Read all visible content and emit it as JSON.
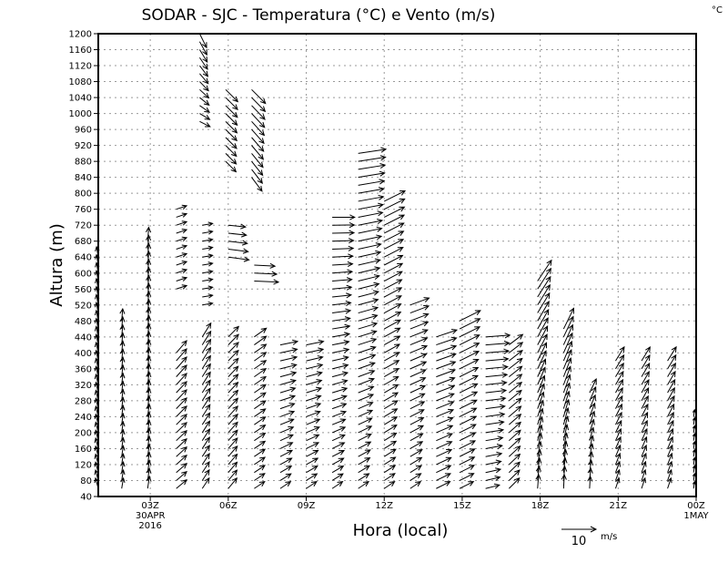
{
  "chart_data": {
    "type": "vector",
    "title": "SODAR - SJC - Temperatura (°C) e Vento (m/s)",
    "corner_label": "°C",
    "xlabel": "Hora (local)",
    "ylabel": "Altura (m)",
    "xlim_hours": [
      1,
      24
    ],
    "ylim": [
      40,
      1200
    ],
    "y_ticks": [
      40,
      80,
      120,
      160,
      200,
      240,
      280,
      320,
      360,
      400,
      440,
      480,
      520,
      560,
      600,
      640,
      680,
      720,
      760,
      800,
      840,
      880,
      920,
      960,
      1000,
      1040,
      1080,
      1120,
      1160,
      1200
    ],
    "x_ticks": [
      {
        "hour": 3,
        "label": "03Z",
        "sub1": "30APR",
        "sub2": "2016"
      },
      {
        "hour": 6,
        "label": "06Z"
      },
      {
        "hour": 9,
        "label": "09Z"
      },
      {
        "hour": 12,
        "label": "12Z"
      },
      {
        "hour": 15,
        "label": "15Z"
      },
      {
        "hour": 18,
        "label": "18Z"
      },
      {
        "hour": 21,
        "label": "21Z"
      },
      {
        "hour": 24,
        "label": "00Z",
        "sub1": "1MAY"
      }
    ],
    "grid": true,
    "reference_vector": {
      "speed": 10,
      "label": "10",
      "unit": "m/s"
    },
    "height_step": 20,
    "segments": [
      {
        "t": 1.0,
        "z": [
          60,
          640
        ],
        "u": [
          -0.8,
          -0.5
        ],
        "v": [
          3,
          3
        ]
      },
      {
        "t": 1.9,
        "z": [
          60,
          480
        ],
        "u": [
          0.5,
          0.3
        ],
        "v": [
          3,
          3.5
        ]
      },
      {
        "t": 2.9,
        "z": [
          60,
          690
        ],
        "u": [
          0.5,
          0.3
        ],
        "v": [
          3.5,
          4
        ]
      },
      {
        "t": 4.0,
        "z": [
          60,
          400
        ],
        "u": [
          3,
          3
        ],
        "v": [
          2.5,
          3.5
        ]
      },
      {
        "t": 4.0,
        "z": [
          560,
          760
        ],
        "u": [
          3,
          3
        ],
        "v": [
          1,
          1
        ]
      },
      {
        "t": 5.0,
        "z": [
          60,
          450
        ],
        "u": [
          2,
          2.5
        ],
        "v": [
          3,
          4
        ]
      },
      {
        "t": 5.0,
        "z": [
          520,
          720
        ],
        "u": [
          3,
          3
        ],
        "v": [
          0.5,
          0.5
        ]
      },
      {
        "t": 4.9,
        "z": [
          980,
          1200
        ],
        "u": [
          3,
          2
        ],
        "v": [
          -1.5,
          -4
        ]
      },
      {
        "t": 6.0,
        "z": [
          60,
          440
        ],
        "u": [
          2.5,
          3
        ],
        "v": [
          3,
          3
        ]
      },
      {
        "t": 6.0,
        "z": [
          640,
          720
        ],
        "u": [
          6,
          5
        ],
        "v": [
          -0.8,
          -0.5
        ]
      },
      {
        "t": 5.9,
        "z": [
          880,
          1060
        ],
        "u": [
          3,
          3.5
        ],
        "v": [
          -3,
          -3.5
        ]
      },
      {
        "t": 7.0,
        "z": [
          60,
          440
        ],
        "u": [
          3,
          3.5
        ],
        "v": [
          2,
          2.5
        ]
      },
      {
        "t": 7.0,
        "z": [
          580,
          620
        ],
        "u": [
          7,
          6
        ],
        "v": [
          -0.3,
          -0.3
        ]
      },
      {
        "t": 6.9,
        "z": [
          840,
          1060
        ],
        "u": [
          3,
          4
        ],
        "v": [
          -4,
          -4
        ]
      },
      {
        "t": 8.0,
        "z": [
          60,
          420
        ],
        "u": [
          3,
          5
        ],
        "v": [
          2,
          1
        ]
      },
      {
        "t": 9.0,
        "z": [
          60,
          420
        ],
        "u": [
          3,
          5
        ],
        "v": [
          2,
          1
        ]
      },
      {
        "t": 10.0,
        "z": [
          60,
          740
        ],
        "u": [
          3,
          6.5
        ],
        "v": [
          2,
          0
        ]
      },
      {
        "t": 11.0,
        "z": [
          60,
          900
        ],
        "u": [
          3,
          8
        ],
        "v": [
          2,
          1.2
        ]
      },
      {
        "t": 12.0,
        "z": [
          60,
          780
        ],
        "u": [
          3,
          6
        ],
        "v": [
          2,
          3
        ]
      },
      {
        "t": 13.0,
        "z": [
          60,
          530
        ],
        "u": [
          3,
          5.5
        ],
        "v": [
          2,
          2
        ]
      },
      {
        "t": 14.0,
        "z": [
          60,
          450
        ],
        "u": [
          4,
          6
        ],
        "v": [
          2,
          2
        ]
      },
      {
        "t": 14.9,
        "z": [
          60,
          480
        ],
        "u": [
          4,
          6
        ],
        "v": [
          2,
          3
        ]
      },
      {
        "t": 15.9,
        "z": [
          60,
          440
        ],
        "u": [
          4,
          7
        ],
        "v": [
          1,
          0.5
        ]
      },
      {
        "t": 16.8,
        "z": [
          60,
          430
        ],
        "u": [
          3,
          4
        ],
        "v": [
          3,
          3
        ]
      },
      {
        "t": 17.9,
        "z": [
          60,
          580
        ],
        "u": [
          0.3,
          4
        ],
        "v": [
          4,
          6
        ]
      },
      {
        "t": 18.9,
        "z": [
          60,
          470
        ],
        "u": [
          0.2,
          3
        ],
        "v": [
          4,
          6
        ]
      },
      {
        "t": 19.9,
        "z": [
          60,
          310
        ],
        "u": [
          0.2,
          2
        ],
        "v": [
          3.5,
          4
        ]
      },
      {
        "t": 20.9,
        "z": [
          60,
          380
        ],
        "u": [
          1,
          2.5
        ],
        "v": [
          3,
          4
        ]
      },
      {
        "t": 21.9,
        "z": [
          60,
          390
        ],
        "u": [
          1,
          2.5
        ],
        "v": [
          3,
          4
        ]
      },
      {
        "t": 22.9,
        "z": [
          60,
          380
        ],
        "u": [
          1,
          2.5
        ],
        "v": [
          3,
          4
        ]
      },
      {
        "t": 23.9,
        "z": [
          60,
          240
        ],
        "u": [
          0.3,
          0.3
        ],
        "v": [
          2,
          2
        ]
      }
    ]
  }
}
